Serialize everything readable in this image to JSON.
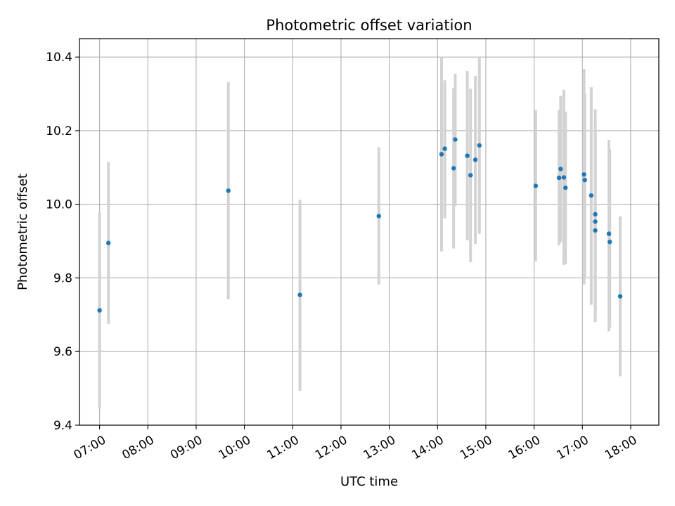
{
  "chart_data": {
    "type": "scatter",
    "title": "Photometric offset variation",
    "xlabel": "UTC time",
    "ylabel": "Photometric offset",
    "x_axis_type": "time",
    "xlim": [
      "06:35",
      "18:35"
    ],
    "ylim": [
      9.4,
      10.45
    ],
    "x_ticks": [
      "07:00",
      "08:00",
      "09:00",
      "10:00",
      "11:00",
      "12:00",
      "13:00",
      "14:00",
      "15:00",
      "16:00",
      "17:00",
      "18:00"
    ],
    "y_ticks": [
      "9.4",
      "9.6",
      "9.8",
      "10.0",
      "10.2",
      "10.4"
    ],
    "grid": true,
    "point_color": "#1f77b4",
    "errorbar_color": "#d3d3d3",
    "points": [
      {
        "x": "07:00",
        "y": 9.712,
        "lo": 9.445,
        "hi": 9.978
      },
      {
        "x": "07:11",
        "y": 9.895,
        "lo": 9.675,
        "hi": 10.115
      },
      {
        "x": "09:40",
        "y": 10.037,
        "lo": 9.742,
        "hi": 10.332
      },
      {
        "x": "11:09",
        "y": 9.754,
        "lo": 9.493,
        "hi": 10.012
      },
      {
        "x": "12:47",
        "y": 9.968,
        "lo": 9.782,
        "hi": 10.155
      },
      {
        "x": "14:05",
        "y": 10.136,
        "lo": 9.872,
        "hi": 10.4
      },
      {
        "x": "14:09",
        "y": 10.151,
        "lo": 9.962,
        "hi": 10.337
      },
      {
        "x": "14:20",
        "y": 10.098,
        "lo": 9.88,
        "hi": 10.316
      },
      {
        "x": "14:22",
        "y": 10.176,
        "lo": 9.995,
        "hi": 10.355
      },
      {
        "x": "14:37",
        "y": 10.132,
        "lo": 9.902,
        "hi": 10.362
      },
      {
        "x": "14:41",
        "y": 10.079,
        "lo": 9.843,
        "hi": 10.314
      },
      {
        "x": "14:47",
        "y": 10.121,
        "lo": 9.892,
        "hi": 10.349
      },
      {
        "x": "14:52",
        "y": 10.16,
        "lo": 9.92,
        "hi": 10.4
      },
      {
        "x": "16:02",
        "y": 10.05,
        "lo": 9.845,
        "hi": 10.256
      },
      {
        "x": "16:31",
        "y": 10.072,
        "lo": 9.889,
        "hi": 10.256
      },
      {
        "x": "16:33",
        "y": 10.096,
        "lo": 9.897,
        "hi": 10.295
      },
      {
        "x": "16:37",
        "y": 10.073,
        "lo": 9.835,
        "hi": 10.311
      },
      {
        "x": "16:39",
        "y": 10.045,
        "lo": 9.838,
        "hi": 10.252
      },
      {
        "x": "17:02",
        "y": 10.081,
        "lo": 9.782,
        "hi": 10.368
      },
      {
        "x": "17:03",
        "y": 10.066,
        "lo": 9.8,
        "hi": 10.3
      },
      {
        "x": "17:11",
        "y": 10.024,
        "lo": 9.727,
        "hi": 10.318
      },
      {
        "x": "17:16",
        "y": 9.973,
        "lo": 9.68,
        "hi": 10.258
      },
      {
        "x": "17:16",
        "y": 9.953,
        "lo": 9.7,
        "hi": 10.18
      },
      {
        "x": "17:16",
        "y": 9.929,
        "lo": 9.69,
        "hi": 10.24
      },
      {
        "x": "17:33",
        "y": 9.92,
        "lo": 9.655,
        "hi": 10.175
      },
      {
        "x": "17:34",
        "y": 9.898,
        "lo": 9.665,
        "hi": 10.15
      },
      {
        "x": "17:47",
        "y": 9.75,
        "lo": 9.533,
        "hi": 9.967
      }
    ]
  }
}
